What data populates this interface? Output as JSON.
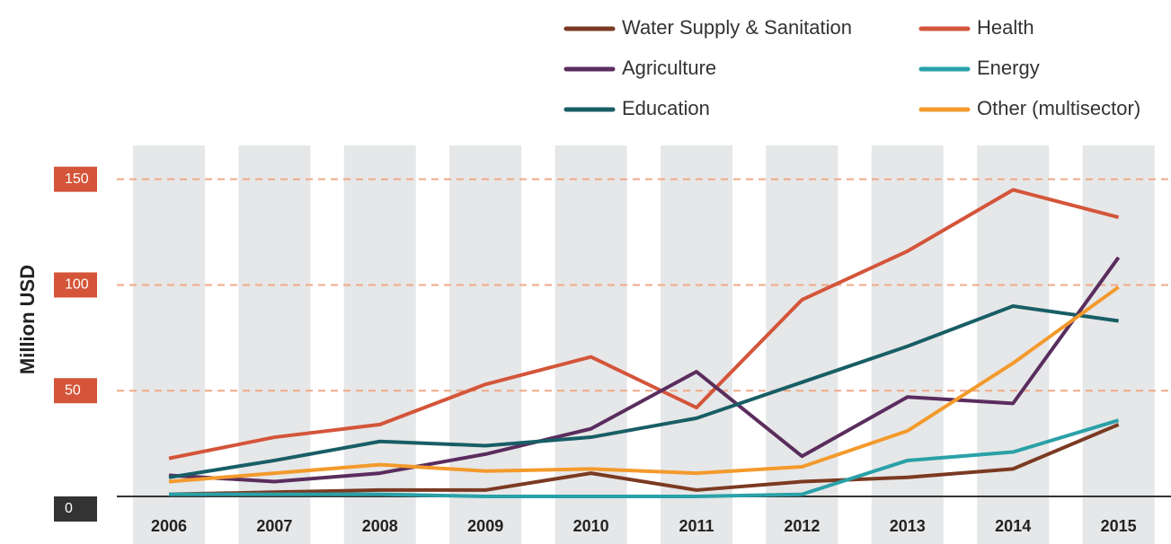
{
  "chart_data": {
    "type": "line",
    "y_label": "Million USD",
    "categories": [
      "2006",
      "2007",
      "2008",
      "2009",
      "2010",
      "2011",
      "2012",
      "2013",
      "2014",
      "2015"
    ],
    "series": [
      {
        "name": "Water Supply & Sanitation",
        "color": "#7b3a22",
        "values": [
          1,
          2,
          3,
          3,
          11,
          3,
          7,
          9,
          13,
          34
        ]
      },
      {
        "name": "Health",
        "color": "#d4553a",
        "values": [
          18,
          28,
          34,
          53,
          66,
          42,
          93,
          116,
          145,
          132
        ]
      },
      {
        "name": "Agriculture",
        "color": "#5a2d5e",
        "values": [
          10,
          7,
          11,
          20,
          32,
          59,
          19,
          47,
          44,
          113
        ]
      },
      {
        "name": "Energy",
        "color": "#2aa1a8",
        "values": [
          1,
          1,
          1,
          0,
          0,
          0,
          1,
          17,
          21,
          36
        ]
      },
      {
        "name": "Education",
        "color": "#185e66",
        "values": [
          9,
          17,
          26,
          24,
          28,
          37,
          54,
          71,
          90,
          83
        ]
      },
      {
        "name": "Other (multisector)",
        "color": "#f39a2c",
        "values": [
          7,
          11,
          15,
          12,
          13,
          11,
          14,
          31,
          63,
          99
        ]
      }
    ],
    "ylim": [
      0,
      166
    ],
    "yticks": [
      0,
      50,
      100,
      150
    ],
    "grid": true
  }
}
